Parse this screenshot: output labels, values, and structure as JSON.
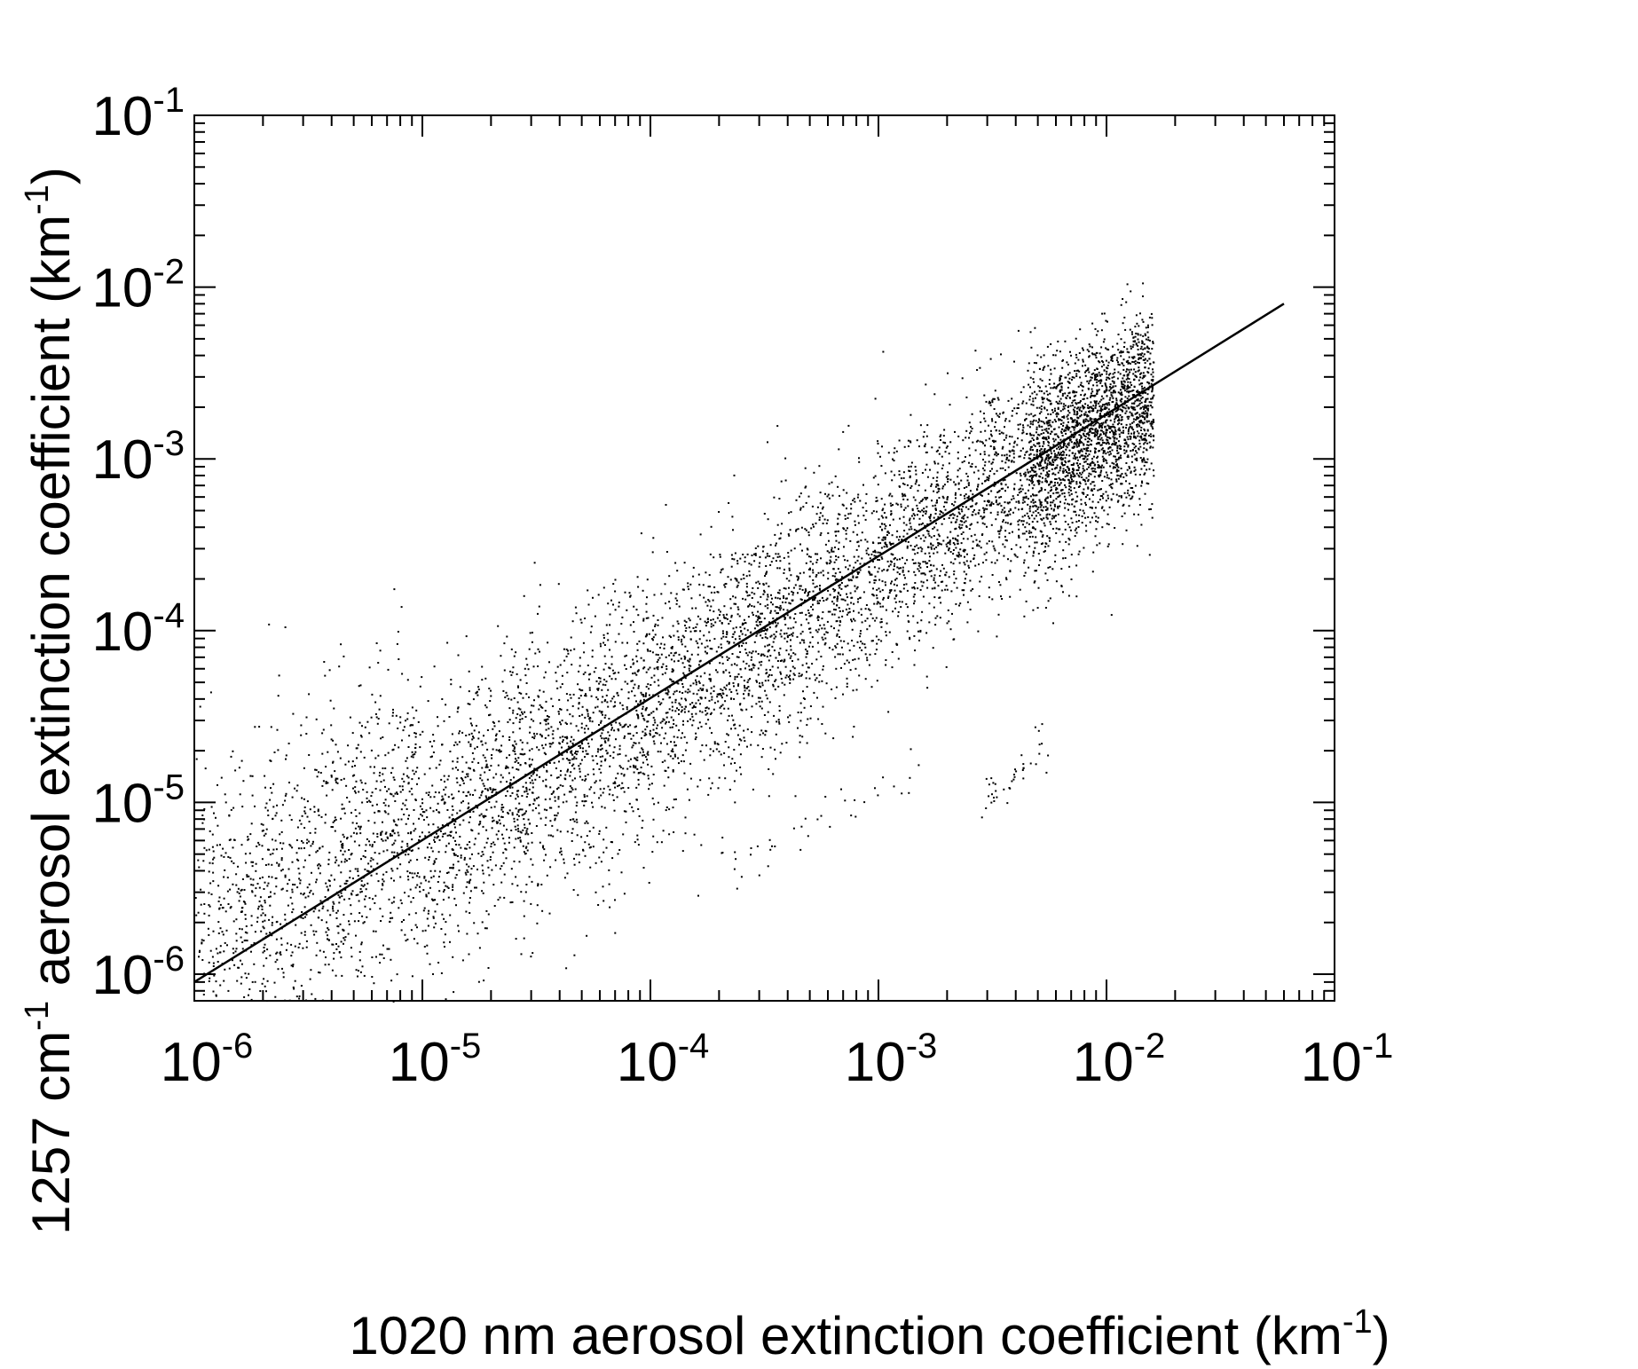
{
  "chart_data": {
    "type": "scatter",
    "title": "",
    "x_scale": "log",
    "y_scale": "log",
    "xlim": [
      1e-06,
      0.1
    ],
    "ylim": [
      7e-07,
      0.1
    ],
    "xlabel": {
      "prefix": "1020 nm aerosol extinction coefficient (km",
      "sup": "-1",
      "suffix": ")"
    },
    "ylabel": {
      "prefix": "1257 cm",
      "sup1": "-1",
      "middle": " aerosol extinction coefficient (km",
      "sup2": "-1",
      "suffix": ")"
    },
    "x_ticks": [
      {
        "value": 1e-06,
        "base": "10",
        "exp": "-6"
      },
      {
        "value": 1e-05,
        "base": "10",
        "exp": "-5"
      },
      {
        "value": 0.0001,
        "base": "10",
        "exp": "-4"
      },
      {
        "value": 0.001,
        "base": "10",
        "exp": "-3"
      },
      {
        "value": 0.01,
        "base": "10",
        "exp": "-2"
      },
      {
        "value": 0.1,
        "base": "10",
        "exp": "-1"
      }
    ],
    "y_ticks": [
      {
        "value": 1e-06,
        "base": "10",
        "exp": "-6"
      },
      {
        "value": 1e-05,
        "base": "10",
        "exp": "-5"
      },
      {
        "value": 0.0001,
        "base": "10",
        "exp": "-4"
      },
      {
        "value": 0.001,
        "base": "10",
        "exp": "-3"
      },
      {
        "value": 0.01,
        "base": "10",
        "exp": "-2"
      },
      {
        "value": 0.1,
        "base": "10",
        "exp": "-1"
      }
    ],
    "fit_line": {
      "x": [
        1e-06,
        0.06
      ],
      "y": [
        9e-07,
        0.008
      ]
    },
    "scatter_cloud": {
      "n_points": 8000,
      "x_range": [
        1e-06,
        0.016
      ],
      "density_peak_x": 0.009,
      "description_of_relation": "points scattered around the fit line with log-space spread of about 0.45 decades, tighter at high extinction"
    },
    "outlier_clusters": [
      {
        "x": [
          0.0028,
          0.0055
        ],
        "y": [
          1e-05,
          2e-05
        ]
      },
      {
        "x": [
          0.0002,
          0.0015
        ],
        "y": [
          4e-06,
          1.5e-05
        ]
      }
    ],
    "grid": false,
    "color": "#000000"
  }
}
